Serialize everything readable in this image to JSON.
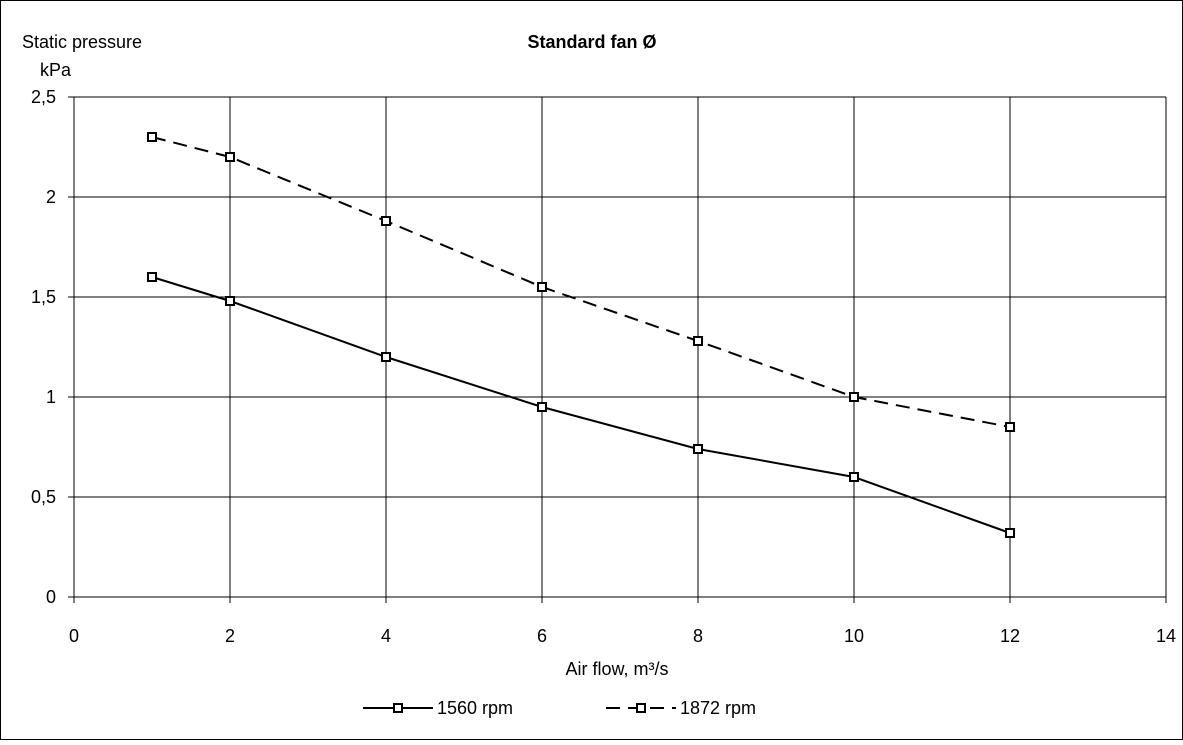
{
  "chart_data": {
    "type": "line",
    "title": "Standard fan Ø",
    "ylabel_line1": "Static pressure",
    "ylabel_line2": "kPa",
    "xlabel": "Air flow, m³/s",
    "xlim": [
      0,
      14
    ],
    "ylim": [
      0,
      2.5
    ],
    "x_ticks": [
      0,
      2,
      4,
      6,
      8,
      10,
      12,
      14
    ],
    "x_tick_labels": [
      "0",
      "2",
      "4",
      "6",
      "8",
      "10",
      "12",
      "14"
    ],
    "y_ticks": [
      0,
      0.5,
      1,
      1.5,
      2,
      2.5
    ],
    "y_tick_labels": [
      "0",
      "0,5",
      "1",
      "1,5",
      "2",
      "2,5"
    ],
    "grid": true,
    "legend_position": "bottom",
    "x": [
      1,
      2,
      4,
      6,
      8,
      10,
      12
    ],
    "series": [
      {
        "name": "1560 rpm",
        "values": [
          1.6,
          1.48,
          1.2,
          0.95,
          0.74,
          0.6,
          0.32
        ],
        "line_style": "solid",
        "marker": "square",
        "color": "#000000"
      },
      {
        "name": "1872 rpm",
        "values": [
          2.3,
          2.2,
          1.88,
          1.55,
          1.28,
          1.0,
          0.85
        ],
        "line_style": "dashed",
        "marker": "square",
        "color": "#000000"
      }
    ]
  }
}
